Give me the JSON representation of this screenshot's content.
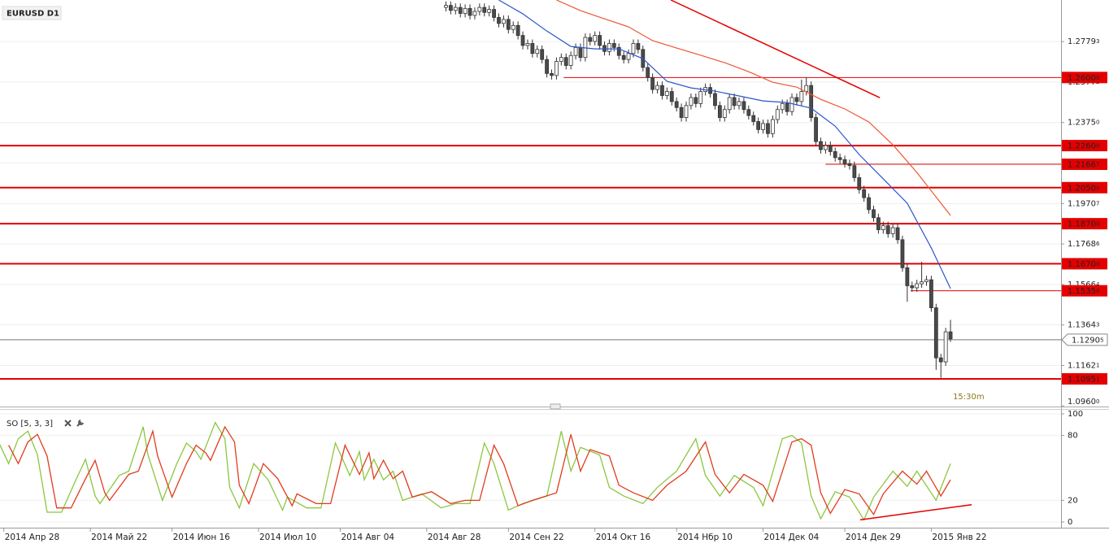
{
  "chart_data": [
    {
      "type": "candlestick",
      "title": "EURUSD D1",
      "x": [
        92,
        93,
        94,
        95,
        96,
        97,
        98,
        99,
        100,
        101,
        102,
        103,
        104,
        105,
        106,
        107,
        108,
        109,
        110,
        111,
        112,
        113,
        114,
        115,
        116,
        117,
        118,
        119,
        120,
        121,
        122,
        123,
        124,
        125,
        126,
        127,
        128,
        129,
        130,
        131,
        132,
        133,
        134,
        135,
        136,
        137,
        138,
        139,
        140,
        141,
        142,
        143,
        144,
        145,
        146,
        147,
        148,
        149,
        150,
        151,
        152,
        153,
        154,
        155,
        156,
        157,
        158,
        159,
        160,
        161,
        162,
        163,
        164,
        165,
        166,
        167,
        168,
        169,
        170,
        171,
        172,
        173,
        174,
        175,
        176,
        177,
        178,
        179,
        180,
        181,
        182,
        183,
        184,
        185,
        186,
        187,
        188,
        189,
        190,
        191,
        192,
        193,
        194,
        195,
        196,
        197
      ],
      "open": [
        1.295,
        1.296,
        1.2935,
        1.295,
        1.292,
        1.2945,
        1.291,
        1.293,
        1.295,
        1.2925,
        1.294,
        1.29,
        1.287,
        1.289,
        1.284,
        1.286,
        1.281,
        1.276,
        1.277,
        1.272,
        1.274,
        1.269,
        1.262,
        1.261,
        1.268,
        1.27,
        1.266,
        1.271,
        1.275,
        1.27,
        1.28,
        1.278,
        1.281,
        1.276,
        1.273,
        1.277,
        1.275,
        1.271,
        1.269,
        1.272,
        1.277,
        1.274,
        1.265,
        1.26,
        1.254,
        1.256,
        1.251,
        1.253,
        1.248,
        1.245,
        1.24,
        1.246,
        1.25,
        1.247,
        1.253,
        1.255,
        1.252,
        1.246,
        1.24,
        1.244,
        1.25,
        1.246,
        1.248,
        1.244,
        1.241,
        1.238,
        1.234,
        1.237,
        1.232,
        1.239,
        1.244,
        1.247,
        1.243,
        1.25,
        1.248,
        1.253,
        1.256,
        1.24,
        1.228,
        1.224,
        1.226,
        1.223,
        1.22,
        1.219,
        1.217,
        1.216,
        1.21,
        1.204,
        1.2,
        1.194,
        1.19,
        1.184,
        1.186,
        1.182,
        1.185,
        1.179,
        1.165,
        1.156,
        1.155,
        1.157,
        1.158,
        1.159,
        1.145,
        1.12,
        1.118,
        1.133
      ],
      "high": [
        1.298,
        1.298,
        1.297,
        1.297,
        1.2965,
        1.2965,
        1.295,
        1.297,
        1.297,
        1.296,
        1.296,
        1.292,
        1.291,
        1.291,
        1.288,
        1.288,
        1.283,
        1.279,
        1.279,
        1.276,
        1.276,
        1.271,
        1.264,
        1.27,
        1.272,
        1.272,
        1.273,
        1.277,
        1.277,
        1.282,
        1.282,
        1.283,
        1.283,
        1.278,
        1.279,
        1.279,
        1.277,
        1.273,
        1.274,
        1.279,
        1.279,
        1.276,
        1.267,
        1.262,
        1.258,
        1.258,
        1.255,
        1.255,
        1.25,
        1.247,
        1.248,
        1.252,
        1.252,
        1.255,
        1.257,
        1.257,
        1.254,
        1.248,
        1.246,
        1.252,
        1.252,
        1.25,
        1.25,
        1.246,
        1.243,
        1.24,
        1.239,
        1.239,
        1.241,
        1.246,
        1.249,
        1.249,
        1.252,
        1.252,
        1.259,
        1.26,
        1.258,
        1.242,
        1.23,
        1.228,
        1.228,
        1.225,
        1.222,
        1.221,
        1.219,
        1.218,
        1.212,
        1.206,
        1.202,
        1.196,
        1.192,
        1.188,
        1.188,
        1.187,
        1.187,
        1.181,
        1.167,
        1.158,
        1.159,
        1.168,
        1.161,
        1.161,
        1.147,
        1.122,
        1.135,
        1.139
      ],
      "low": [
        1.293,
        1.2915,
        1.2915,
        1.29,
        1.29,
        1.289,
        1.289,
        1.291,
        1.2905,
        1.2905,
        1.288,
        1.285,
        1.285,
        1.282,
        1.282,
        1.279,
        1.274,
        1.274,
        1.27,
        1.27,
        1.267,
        1.26,
        1.259,
        1.259,
        1.266,
        1.264,
        1.264,
        1.269,
        1.268,
        1.268,
        1.276,
        1.276,
        1.274,
        1.271,
        1.271,
        1.273,
        1.269,
        1.267,
        1.267,
        1.27,
        1.272,
        1.263,
        1.258,
        1.252,
        1.252,
        1.249,
        1.249,
        1.246,
        1.243,
        1.238,
        1.238,
        1.244,
        1.245,
        1.245,
        1.251,
        1.25,
        1.244,
        1.238,
        1.238,
        1.242,
        1.244,
        1.244,
        1.242,
        1.239,
        1.236,
        1.232,
        1.232,
        1.23,
        1.23,
        1.237,
        1.242,
        1.241,
        1.241,
        1.246,
        1.246,
        1.251,
        1.238,
        1.226,
        1.222,
        1.222,
        1.221,
        1.218,
        1.217,
        1.215,
        1.214,
        1.208,
        1.202,
        1.198,
        1.192,
        1.188,
        1.182,
        1.182,
        1.18,
        1.18,
        1.177,
        1.163,
        1.148,
        1.153,
        1.153,
        1.155,
        1.156,
        1.143,
        1.114,
        1.11,
        1.116,
        1.128
      ],
      "close": [
        1.296,
        1.2935,
        1.295,
        1.292,
        1.2945,
        1.291,
        1.293,
        1.295,
        1.2925,
        1.294,
        1.29,
        1.287,
        1.289,
        1.284,
        1.286,
        1.281,
        1.276,
        1.277,
        1.272,
        1.274,
        1.269,
        1.262,
        1.261,
        1.268,
        1.27,
        1.266,
        1.271,
        1.275,
        1.27,
        1.28,
        1.278,
        1.281,
        1.276,
        1.273,
        1.277,
        1.275,
        1.271,
        1.269,
        1.272,
        1.277,
        1.274,
        1.265,
        1.26,
        1.254,
        1.256,
        1.251,
        1.253,
        1.248,
        1.245,
        1.24,
        1.246,
        1.25,
        1.247,
        1.253,
        1.255,
        1.252,
        1.246,
        1.24,
        1.244,
        1.25,
        1.246,
        1.248,
        1.244,
        1.241,
        1.238,
        1.234,
        1.237,
        1.232,
        1.239,
        1.244,
        1.247,
        1.243,
        1.25,
        1.248,
        1.253,
        1.256,
        1.24,
        1.228,
        1.224,
        1.226,
        1.223,
        1.22,
        1.219,
        1.217,
        1.216,
        1.21,
        1.204,
        1.2,
        1.194,
        1.19,
        1.184,
        1.186,
        1.182,
        1.185,
        1.179,
        1.165,
        1.156,
        1.155,
        1.157,
        1.158,
        1.159,
        1.145,
        1.12,
        1.118,
        1.133,
        1.1295
      ],
      "up_color": "#ffffff",
      "down_color": "#4a4a4a",
      "xlim": [
        -0.8,
        220
      ],
      "ylim": [
        1.0957,
        1.2987
      ],
      "yticks": [
        1.27793,
        1.25772,
        {
          "value": 1.2375,
          "label": "1.23750"
        },
        1.21729,
        1.19707,
        1.17686,
        1.15664,
        1.13643,
        1.11621,
        {
          "value": 1.096,
          "label": "1.09600"
        }
      ],
      "grid": true,
      "series": [
        {
          "color": "#2a55c8",
          "x": [
            103,
            108,
            113,
            118,
            123,
            128,
            133,
            138,
            143,
            148,
            153,
            158,
            163,
            168,
            173,
            178,
            183,
            188,
            193,
            197
          ],
          "values": [
            1.2987,
            1.2918,
            1.2832,
            1.2755,
            1.2743,
            1.2743,
            1.2694,
            1.2581,
            1.2548,
            1.2532,
            1.2508,
            1.2483,
            1.2475,
            1.2447,
            1.2357,
            1.2215,
            1.2094,
            1.1972,
            1.1749,
            1.1546
          ]
        },
        {
          "color": "#ee5533",
          "x": [
            115,
            120,
            125,
            130,
            135,
            140,
            145,
            150,
            155,
            160,
            165,
            170,
            175,
            180,
            185,
            190,
            197
          ],
          "values": [
            1.2987,
            1.2934,
            1.2893,
            1.2853,
            1.2784,
            1.2747,
            1.2711,
            1.2674,
            1.2629,
            1.2576,
            1.2552,
            1.2491,
            1.2443,
            1.2378,
            1.2264,
            1.2126,
            1.1911
          ]
        }
      ],
      "levels": [
        {
          "value": 1.26,
          "label": "1.26000",
          "start": 116.5
        },
        {
          "value": 1.226,
          "label": "1.22600"
        },
        {
          "value": 1.21667,
          "label": "1.21667",
          "start": 171
        },
        {
          "value": 1.205,
          "label": "1.20500"
        },
        {
          "value": 1.187,
          "label": "1.18700"
        },
        {
          "value": 1.167,
          "label": "1.16700"
        },
        {
          "value": 1.1535,
          "label": "1.15350",
          "start": 188.7
        },
        {
          "value": 1.10951,
          "label": "1.10951"
        }
      ],
      "level_color": "#e40000",
      "trendlines": [
        {
          "x": [
            138.8,
            182.3
          ],
          "values": [
            1.2987,
            1.2499
          ],
          "color": "#e40000"
        }
      ],
      "last_price": 1.12905,
      "annotation": "15:30m"
    },
    {
      "type": "line",
      "title": "SO [5, 3, 3]",
      "xlim": [
        -0.8,
        220
      ],
      "ylim": [
        0,
        100
      ],
      "yticks": [
        0,
        20,
        80,
        100
      ],
      "xticks": [
        {
          "value": 0,
          "label": "2014 Апр 28"
        },
        {
          "value": 18,
          "label": "2014 Май 22"
        },
        {
          "value": 35,
          "label": "2014 Июн 16"
        },
        {
          "value": 53,
          "label": "2014 Июл 10"
        },
        {
          "value": 70,
          "label": "2014 Авг 04"
        },
        {
          "value": 88,
          "label": "2014 Авг 28"
        },
        {
          "value": 105,
          "label": "2014 Сен 22"
        },
        {
          "value": 123,
          "label": "2014 Окт 16"
        },
        {
          "value": 140,
          "label": "2014 Нбр 10"
        },
        {
          "value": 158,
          "label": "2014 Дек 04"
        },
        {
          "value": 175,
          "label": "2014 Дек 29"
        },
        {
          "value": 193,
          "label": "2015 Янв 22"
        }
      ],
      "series": [
        {
          "color": "#8cc63f",
          "x": [
            -1,
            1,
            3,
            5,
            7,
            9,
            12,
            15,
            17,
            19,
            20,
            24,
            26,
            29,
            30,
            33,
            36,
            38,
            40,
            41,
            44,
            46,
            47,
            49,
            52,
            55,
            58,
            59,
            63,
            66,
            69,
            72,
            74,
            75,
            77,
            79,
            81,
            83,
            87,
            91,
            94,
            97,
            100,
            102,
            105,
            108,
            113,
            116,
            118,
            120,
            124,
            126,
            129,
            133,
            136,
            140,
            144,
            146,
            149,
            152,
            156,
            158,
            162,
            164,
            166,
            168,
            170,
            173,
            176,
            179,
            181,
            185,
            188,
            190,
            194,
            197
          ],
          "values": [
            73,
            54,
            77,
            84,
            62,
            9,
            9,
            39,
            58,
            24,
            17,
            43,
            47,
            88,
            62,
            20,
            54,
            73,
            65,
            58,
            92,
            77,
            32,
            13,
            54,
            39,
            11,
            23,
            13,
            13,
            73,
            43,
            65,
            39,
            58,
            39,
            47,
            20,
            26,
            13,
            17,
            17,
            73,
            54,
            11,
            17,
            24,
            84,
            47,
            69,
            62,
            32,
            24,
            17,
            32,
            47,
            77,
            43,
            24,
            43,
            32,
            15,
            77,
            80,
            73,
            24,
            3,
            28,
            23,
            2,
            23,
            47,
            33,
            47,
            20,
            54
          ]
        },
        {
          "color": "#e03c1e",
          "x": [
            1,
            3,
            5,
            7,
            9,
            11,
            14,
            17,
            19,
            21,
            22,
            26,
            28,
            31,
            32,
            35,
            38,
            40,
            42,
            43,
            46,
            48,
            49,
            51,
            54,
            57,
            60,
            61,
            65,
            68,
            71,
            74,
            76,
            77,
            79,
            81,
            83,
            85,
            89,
            93,
            96,
            99,
            102,
            104,
            107,
            110,
            115,
            118,
            120,
            122,
            126,
            128,
            131,
            135,
            138,
            142,
            146,
            148,
            151,
            154,
            158,
            160,
            164,
            166,
            168,
            170,
            172,
            175,
            178,
            181,
            183,
            187,
            190,
            192,
            195,
            197
          ],
          "values": [
            71,
            54,
            74,
            81,
            61,
            13,
            13,
            40,
            57,
            27,
            20,
            44,
            47,
            84,
            61,
            23,
            54,
            71,
            64,
            57,
            88,
            74,
            34,
            17,
            54,
            40,
            15,
            26,
            17,
            17,
            71,
            44,
            64,
            40,
            57,
            40,
            47,
            23,
            28,
            17,
            20,
            20,
            71,
            54,
            15,
            20,
            27,
            81,
            47,
            67,
            61,
            34,
            27,
            20,
            34,
            47,
            74,
            44,
            27,
            44,
            34,
            19,
            74,
            77,
            71,
            27,
            8,
            30,
            26,
            7,
            26,
            47,
            35,
            47,
            24,
            39
          ]
        }
      ],
      "trendlines": [
        {
          "x": [
            178.2,
            201.4
          ],
          "values": [
            2,
            16
          ],
          "color": "#e40000"
        }
      ]
    }
  ]
}
